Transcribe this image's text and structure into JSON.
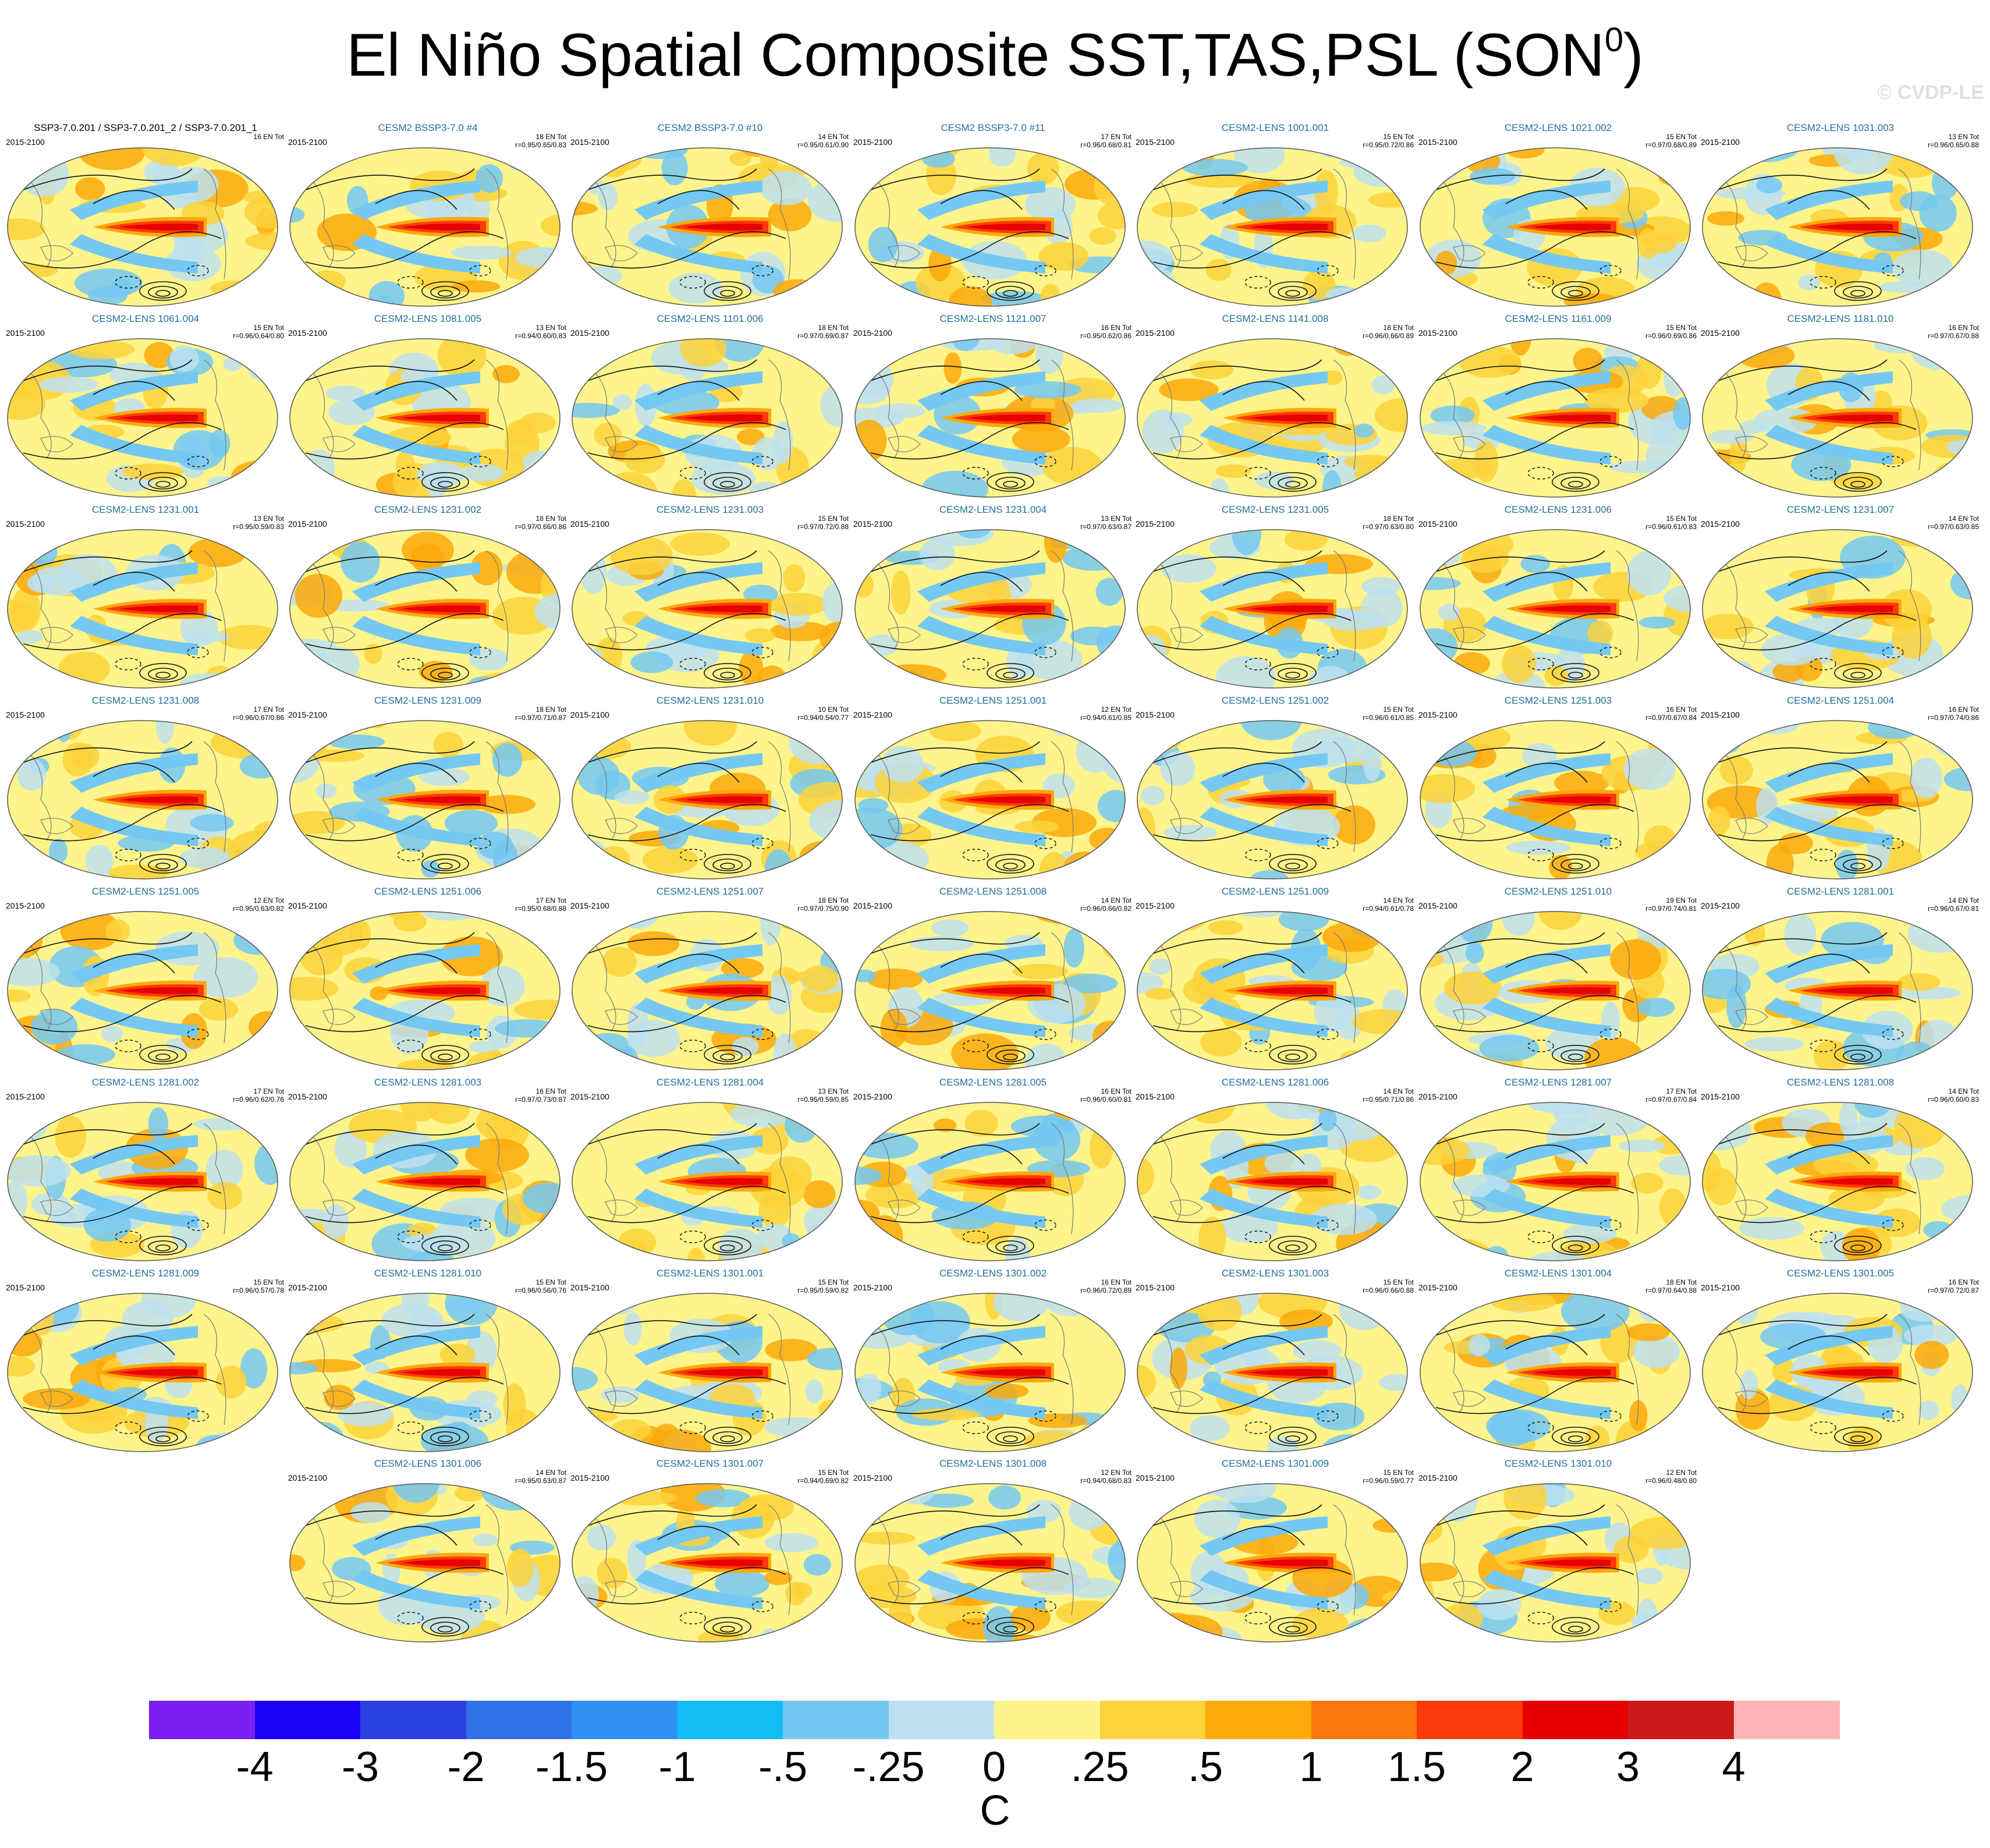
{
  "title": "El Niño Spatial Composite SST,TAS,PSL (SON",
  "title_sup": "0",
  "title_end": ")",
  "watermark": "© CVDP-LE",
  "period": "2015-2100",
  "panels": [
    {
      "title": "SSP3-7.0.201 / SSP3-7.0.201_2 / SSP3-7.0.201_1",
      "events": "16 EN Tot",
      "r": "",
      "black": true
    },
    {
      "title": "CESM2 BSSP3-7.0 #4",
      "events": "18 EN Tot",
      "r": "r=0.95/0.65/0.83"
    },
    {
      "title": "CESM2 BSSP3-7.0 #10",
      "events": "14 EN Tot",
      "r": "r=0.95/0.61/0.90"
    },
    {
      "title": "CESM2 BSSP3-7.0 #11",
      "events": "17 EN Tot",
      "r": "r=0.96/0.68/0.81"
    },
    {
      "title": "CESM2-LENS 1001.001",
      "events": "15 EN Tot",
      "r": "r=0.95/0.72/0.86"
    },
    {
      "title": "CESM2-LENS 1021.002",
      "events": "15 EN Tot",
      "r": "r=0.97/0.68/0.89"
    },
    {
      "title": "CESM2-LENS 1031.003",
      "events": "13 EN Tot",
      "r": "r=0.96/0.65/0.88"
    },
    {
      "title": "CESM2-LENS 1061.004",
      "events": "15 EN Tot",
      "r": "r=0.96/0.64/0.80"
    },
    {
      "title": "CESM2-LENS 1081.005",
      "events": "13 EN Tot",
      "r": "r=0.94/0.60/0.83"
    },
    {
      "title": "CESM2-LENS 1101.006",
      "events": "18 EN Tot",
      "r": "r=0.97/0.69/0.87"
    },
    {
      "title": "CESM2-LENS 1121.007",
      "events": "16 EN Tot",
      "r": "r=0.95/0.62/0.86"
    },
    {
      "title": "CESM2-LENS 1141.008",
      "events": "18 EN Tot",
      "r": "r=0.96/0.66/0.89"
    },
    {
      "title": "CESM2-LENS 1161.009",
      "events": "15 EN Tot",
      "r": "r=0.96/0.69/0.86"
    },
    {
      "title": "CESM2-LENS 1181.010",
      "events": "16 EN Tot",
      "r": "r=0.97/0.67/0.88"
    },
    {
      "title": "CESM2-LENS 1231.001",
      "events": "13 EN Tot",
      "r": "r=0.95/0.59/0.83"
    },
    {
      "title": "CESM2-LENS 1231.002",
      "events": "18 EN Tot",
      "r": "r=0.97/0.66/0.86"
    },
    {
      "title": "CESM2-LENS 1231.003",
      "events": "15 EN Tot",
      "r": "r=0.97/0.72/0.88"
    },
    {
      "title": "CESM2-LENS 1231.004",
      "events": "13 EN Tot",
      "r": "r=0.97/0.63/0.87"
    },
    {
      "title": "CESM2-LENS 1231.005",
      "events": "18 EN Tot",
      "r": "r=0.97/0.63/0.80"
    },
    {
      "title": "CESM2-LENS 1231.006",
      "events": "15 EN Tot",
      "r": "r=0.96/0.61/0.83"
    },
    {
      "title": "CESM2-LENS 1231.007",
      "events": "14 EN Tot",
      "r": "r=0.97/0.63/0.85"
    },
    {
      "title": "CESM2-LENS 1231.008",
      "events": "17 EN Tot",
      "r": "r=0.96/0.67/0.86"
    },
    {
      "title": "CESM2-LENS 1231.009",
      "events": "18 EN Tot",
      "r": "r=0.97/0.71/0.87"
    },
    {
      "title": "CESM2-LENS 1231.010",
      "events": "10 EN Tot",
      "r": "r=0.94/0.54/0.77"
    },
    {
      "title": "CESM2-LENS 1251.001",
      "events": "12 EN Tot",
      "r": "r=0.94/0.61/0.85"
    },
    {
      "title": "CESM2-LENS 1251.002",
      "events": "15 EN Tot",
      "r": "r=0.96/0.61/0.85"
    },
    {
      "title": "CESM2-LENS 1251.003",
      "events": "16 EN Tot",
      "r": "r=0.97/0.67/0.84"
    },
    {
      "title": "CESM2-LENS 1251.004",
      "events": "16 EN Tot",
      "r": "r=0.97/0.74/0.86"
    },
    {
      "title": "CESM2-LENS 1251.005",
      "events": "12 EN Tot",
      "r": "r=0.95/0.63/0.82"
    },
    {
      "title": "CESM2-LENS 1251.006",
      "events": "17 EN Tot",
      "r": "r=0.95/0.68/0.88"
    },
    {
      "title": "CESM2-LENS 1251.007",
      "events": "18 EN Tot",
      "r": "r=0.97/0.75/0.90"
    },
    {
      "title": "CESM2-LENS 1251.008",
      "events": "14 EN Tot",
      "r": "r=0.96/0.66/0.82"
    },
    {
      "title": "CESM2-LENS 1251.009",
      "events": "14 EN Tot",
      "r": "r=0.94/0.61/0.78"
    },
    {
      "title": "CESM2-LENS 1251.010",
      "events": "19 EN Tot",
      "r": "r=0.97/0.74/0.81"
    },
    {
      "title": "CESM2-LENS 1281.001",
      "events": "14 EN Tot",
      "r": "r=0.96/0.67/0.81"
    },
    {
      "title": "CESM2-LENS 1281.002",
      "events": "17 EN Tot",
      "r": "r=0.96/0.62/0.76"
    },
    {
      "title": "CESM2-LENS 1281.003",
      "events": "16 EN Tot",
      "r": "r=0.97/0.73/0.87"
    },
    {
      "title": "CESM2-LENS 1281.004",
      "events": "13 EN Tot",
      "r": "r=0.95/0.59/0.85"
    },
    {
      "title": "CESM2-LENS 1281.005",
      "events": "16 EN Tot",
      "r": "r=0.96/0.60/0.81"
    },
    {
      "title": "CESM2-LENS 1281.006",
      "events": "14 EN Tot",
      "r": "r=0.95/0.71/0.86"
    },
    {
      "title": "CESM2-LENS 1281.007",
      "events": "17 EN Tot",
      "r": "r=0.97/0.67/0.84"
    },
    {
      "title": "CESM2-LENS 1281.008",
      "events": "14 EN Tot",
      "r": "r=0.96/0.60/0.83"
    },
    {
      "title": "CESM2-LENS 1281.009",
      "events": "15 EN Tot",
      "r": "r=0.96/0.57/0.78"
    },
    {
      "title": "CESM2-LENS 1281.010",
      "events": "15 EN Tot",
      "r": "r=0.96/0.56/0.76"
    },
    {
      "title": "CESM2-LENS 1301.001",
      "events": "15 EN Tot",
      "r": "r=0.95/0.59/0.82"
    },
    {
      "title": "CESM2-LENS 1301.002",
      "events": "16 EN Tot",
      "r": "r=0.96/0.72/0.89"
    },
    {
      "title": "CESM2-LENS 1301.003",
      "events": "15 EN Tot",
      "r": "r=0.96/0.66/0.88"
    },
    {
      "title": "CESM2-LENS 1301.004",
      "events": "18 EN Tot",
      "r": "r=0.97/0.64/0.88"
    },
    {
      "title": "CESM2-LENS 1301.005",
      "events": "16 EN Tot",
      "r": "r=0.97/0.72/0.87"
    },
    {
      "title": "CESM2-LENS 1301.006",
      "events": "14 EN Tot",
      "r": "r=0.95/0.63/0.87"
    },
    {
      "title": "CESM2-LENS 1301.007",
      "events": "15 EN Tot",
      "r": "r=0.94/0.69/0.82"
    },
    {
      "title": "CESM2-LENS 1301.008",
      "events": "12 EN Tot",
      "r": "r=0.94/0.68/0.83"
    },
    {
      "title": "CESM2-LENS 1301.009",
      "events": "15 EN Tot",
      "r": "r=0.96/0.59/0.77"
    },
    {
      "title": "CESM2-LENS 1301.010",
      "events": "12 EN Tot",
      "r": "r=0.96/0.48/0.80"
    }
  ],
  "colorbar": {
    "colors": [
      "#7b1ff0",
      "#1a00f5",
      "#2a3fe0",
      "#3070e6",
      "#2f90f0",
      "#12bdf5",
      "#74c8f2",
      "#bde0f0",
      "#fdf48c",
      "#fdd23a",
      "#fca90a",
      "#fc780a",
      "#fc3a0a",
      "#e60000",
      "#cc1a1a",
      "#fcb4b4"
    ],
    "labels": [
      "-4",
      "-3",
      "-2",
      "-1.5",
      "-1",
      "-.5",
      "-.25",
      "0",
      ".25",
      ".5",
      "1",
      "1.5",
      "2",
      "3",
      "4"
    ],
    "units": "C"
  },
  "chart_data": {
    "type": "heatmap",
    "title": "El Niño Spatial Composite SST,TAS,PSL (SON0)",
    "levels": [
      -4,
      -3,
      -2,
      -1.5,
      -1,
      -0.5,
      -0.25,
      0,
      0.25,
      0.5,
      1,
      1.5,
      2,
      3,
      4
    ],
    "units": "C",
    "period": "2015-2100",
    "n_panels": 54
  }
}
